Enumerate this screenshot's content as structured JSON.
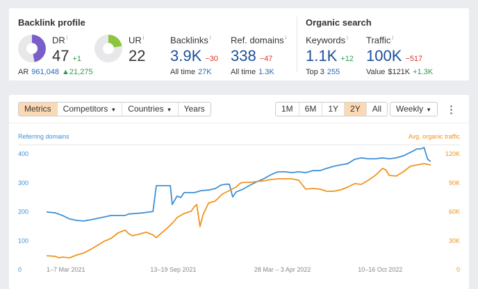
{
  "backlink_profile": {
    "title": "Backlink profile",
    "dr": {
      "label": "DR",
      "info": "i",
      "value": "47",
      "delta": "+1",
      "fill_percent": 47,
      "color": "#7b5fc9"
    },
    "ar": {
      "label": "AR",
      "value": "961,048",
      "delta": "▲21,275"
    },
    "ur": {
      "label": "UR",
      "info": "i",
      "value": "22",
      "fill_percent": 22,
      "color": "#8cc63f"
    },
    "backlinks": {
      "label": "Backlinks",
      "info": "i",
      "value": "3.9K",
      "delta": "−30",
      "sub_label": "All time",
      "sub_value": "27K"
    },
    "ref_domains": {
      "label": "Ref. domains",
      "info": "i",
      "value": "338",
      "delta": "−47",
      "sub_label": "All time",
      "sub_value": "1.3K"
    }
  },
  "organic_search": {
    "title": "Organic search",
    "keywords": {
      "label": "Keywords",
      "info": "i",
      "value": "1.1K",
      "delta": "+12",
      "sub_label": "Top 3",
      "sub_value": "255"
    },
    "traffic": {
      "label": "Traffic",
      "info": "i",
      "value": "100K",
      "delta": "−517",
      "sub_label": "Value",
      "sub_value": "$121K",
      "sub_delta": "+1.3K"
    }
  },
  "toolbar": {
    "tabs": [
      "Metrics",
      "Competitors",
      "Countries",
      "Years"
    ],
    "ranges": [
      "1M",
      "6M",
      "1Y",
      "2Y",
      "All"
    ],
    "active_range": "2Y",
    "interval": "Weekly",
    "dropdown_arrow": "▼",
    "more": "⋮"
  },
  "chart_data": {
    "type": "line",
    "left_label": "Referring domains",
    "right_label": "Avg. organic traffic",
    "left_ticks": [
      "0",
      "100",
      "200",
      "300",
      "400"
    ],
    "right_ticks": [
      "0",
      "30K",
      "60K",
      "90K",
      "120K"
    ],
    "ylim_left": [
      0,
      400
    ],
    "ylim_right": [
      0,
      120000
    ],
    "xlim_weeks": [
      0,
      104
    ],
    "x_ticks": [
      {
        "label": "1–7 Mar 2021",
        "week": 0
      },
      {
        "label": "13–19 Sep 2021",
        "week": 28
      },
      {
        "label": "28 Mar – 3 Apr 2022",
        "week": 56
      },
      {
        "label": "10–16 Oct 2022",
        "week": 84
      }
    ],
    "series": [
      {
        "name": "Referring domains",
        "axis": "left",
        "color": "#3d8fd6",
        "x": [
          0,
          2.4,
          4.3,
          6.2,
          8.1,
          10,
          11.8,
          13.7,
          15.6,
          17.4,
          19.3,
          21.2,
          22.1,
          24,
          25.9,
          27.7,
          28.7,
          29.6,
          33.4,
          33.9,
          35.2,
          36.2,
          37.1,
          39.9,
          41.8,
          43.7,
          45.5,
          47,
          48.3,
          49.3,
          50.2,
          51.1,
          53,
          54.9,
          56.8,
          58.6,
          60.5,
          62.4,
          64.3,
          66.2,
          68,
          69.9,
          71.8,
          73.7,
          75.6,
          77.4,
          79.3,
          81.2,
          83.1,
          84.9,
          86.8,
          88.7,
          90.6,
          92.4,
          94.3,
          96.2,
          98.1,
          99.9,
          100.9,
          101.8,
          102.8,
          103.6
        ],
        "values": [
          199,
          196,
          187,
          175,
          170,
          168,
          172,
          177,
          182,
          187,
          187,
          187,
          192,
          194,
          196,
          199,
          201,
          290,
          290,
          225,
          254,
          249,
          266,
          266,
          273,
          275,
          280,
          292,
          295,
          295,
          251,
          268,
          278,
          292,
          304,
          314,
          328,
          338,
          338,
          335,
          338,
          335,
          342,
          342,
          350,
          357,
          362,
          366,
          381,
          386,
          383,
          383,
          386,
          383,
          386,
          393,
          405,
          417,
          417,
          422,
          381,
          374
        ]
      },
      {
        "name": "Avg. organic traffic",
        "axis": "right",
        "color": "#f0931c",
        "x": [
          0,
          2.4,
          3.4,
          4.3,
          6.2,
          8.1,
          10,
          11.8,
          13.7,
          15.6,
          17.4,
          19.3,
          21.2,
          22.1,
          23.1,
          24.9,
          26.8,
          28.7,
          29.6,
          30.6,
          32.4,
          34.3,
          35.2,
          37.1,
          39,
          39.9,
          40.5,
          41.4,
          42.2,
          43.7,
          45.5,
          47.4,
          49.3,
          51.1,
          52.1,
          53,
          54.9,
          56.8,
          58.6,
          60.5,
          62.4,
          66.2,
          68,
          69.9,
          71.8,
          73.7,
          75.6,
          77.4,
          79.3,
          81.2,
          83.1,
          84.9,
          86.8,
          88.7,
          90.6,
          91.5,
          92.4,
          94.3,
          96.2,
          98.1,
          99.9,
          101.8,
          103.6
        ],
        "values": [
          14400,
          13700,
          12200,
          12900,
          12200,
          15100,
          17200,
          20800,
          25100,
          29500,
          32300,
          38100,
          41000,
          37400,
          35200,
          36600,
          38800,
          36000,
          33100,
          36600,
          42400,
          49600,
          53900,
          58200,
          60400,
          65400,
          67500,
          44600,
          56800,
          69000,
          71100,
          78300,
          81900,
          85500,
          89100,
          90500,
          90500,
          91300,
          92000,
          93400,
          94100,
          94100,
          92700,
          83400,
          84100,
          83400,
          81200,
          81200,
          82600,
          85500,
          89100,
          88400,
          92700,
          97700,
          104900,
          103500,
          97700,
          97000,
          101300,
          107100,
          108500,
          109900,
          108500
        ]
      }
    ]
  }
}
